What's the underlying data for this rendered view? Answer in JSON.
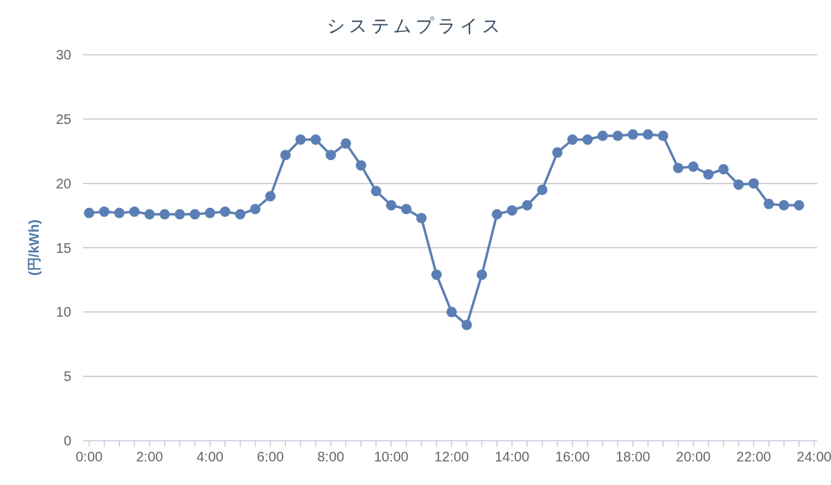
{
  "chart_data": {
    "type": "line",
    "title": "システムプライス",
    "ylabel": "(円/kWh)",
    "x": [
      0,
      0.5,
      1,
      1.5,
      2,
      2.5,
      3,
      3.5,
      4,
      4.5,
      5,
      5.5,
      6,
      6.5,
      7,
      7.5,
      8,
      8.5,
      9,
      9.5,
      10,
      10.5,
      11,
      11.5,
      12,
      12.5,
      13,
      13.5,
      14,
      14.5,
      15,
      15.5,
      16,
      16.5,
      17,
      17.5,
      18,
      18.5,
      19,
      19.5,
      20,
      20.5,
      21,
      21.5,
      22,
      22.5,
      23,
      23.5
    ],
    "series": [
      {
        "color": "#5b7fb4",
        "values": [
          17.7,
          17.8,
          17.7,
          17.8,
          17.6,
          17.6,
          17.6,
          17.6,
          17.7,
          17.8,
          17.6,
          18.0,
          19.0,
          22.2,
          23.4,
          23.4,
          22.2,
          23.1,
          21.4,
          19.4,
          18.3,
          18.0,
          17.3,
          12.9,
          10.0,
          9.0,
          12.9,
          17.6,
          17.9,
          18.3,
          19.5,
          22.4,
          23.4,
          23.4,
          23.7,
          23.7,
          23.8,
          23.8,
          23.7,
          21.2,
          21.3,
          20.7,
          21.1,
          19.9,
          20.0,
          18.4,
          18.3,
          18.3
        ]
      }
    ],
    "xlim": [
      -0.2,
      24.1
    ],
    "ylim": [
      0,
      30
    ],
    "xticks": [
      {
        "value": 0,
        "label": "0:00"
      },
      {
        "value": 0.5,
        "label": null
      },
      {
        "value": 1,
        "label": null
      },
      {
        "value": 1.5,
        "label": null
      },
      {
        "value": 2,
        "label": "2:00"
      },
      {
        "value": 2.5,
        "label": null
      },
      {
        "value": 3,
        "label": null
      },
      {
        "value": 3.5,
        "label": null
      },
      {
        "value": 4,
        "label": "4:00"
      },
      {
        "value": 4.5,
        "label": null
      },
      {
        "value": 5,
        "label": null
      },
      {
        "value": 5.5,
        "label": null
      },
      {
        "value": 6,
        "label": "6:00"
      },
      {
        "value": 6.5,
        "label": null
      },
      {
        "value": 7,
        "label": null
      },
      {
        "value": 7.5,
        "label": null
      },
      {
        "value": 8,
        "label": "8:00"
      },
      {
        "value": 8.5,
        "label": null
      },
      {
        "value": 9,
        "label": null
      },
      {
        "value": 9.5,
        "label": null
      },
      {
        "value": 10,
        "label": "10:00"
      },
      {
        "value": 10.5,
        "label": null
      },
      {
        "value": 11,
        "label": null
      },
      {
        "value": 11.5,
        "label": null
      },
      {
        "value": 12,
        "label": "12:00"
      },
      {
        "value": 12.5,
        "label": null
      },
      {
        "value": 13,
        "label": null
      },
      {
        "value": 13.5,
        "label": null
      },
      {
        "value": 14,
        "label": "14:00"
      },
      {
        "value": 14.5,
        "label": null
      },
      {
        "value": 15,
        "label": null
      },
      {
        "value": 15.5,
        "label": null
      },
      {
        "value": 16,
        "label": "16:00"
      },
      {
        "value": 16.5,
        "label": null
      },
      {
        "value": 17,
        "label": null
      },
      {
        "value": 17.5,
        "label": null
      },
      {
        "value": 18,
        "label": "18:00"
      },
      {
        "value": 18.5,
        "label": null
      },
      {
        "value": 19,
        "label": null
      },
      {
        "value": 19.5,
        "label": null
      },
      {
        "value": 20,
        "label": "20:00"
      },
      {
        "value": 20.5,
        "label": null
      },
      {
        "value": 21,
        "label": null
      },
      {
        "value": 21.5,
        "label": null
      },
      {
        "value": 22,
        "label": "22:00"
      },
      {
        "value": 22.5,
        "label": null
      },
      {
        "value": 23,
        "label": null
      },
      {
        "value": 23.5,
        "label": null
      },
      {
        "value": 24,
        "label": "24:00"
      }
    ],
    "yticks": [
      0,
      5,
      10,
      15,
      20,
      25,
      30
    ],
    "grid": "y",
    "marker": "circle",
    "line_style": "solid"
  }
}
